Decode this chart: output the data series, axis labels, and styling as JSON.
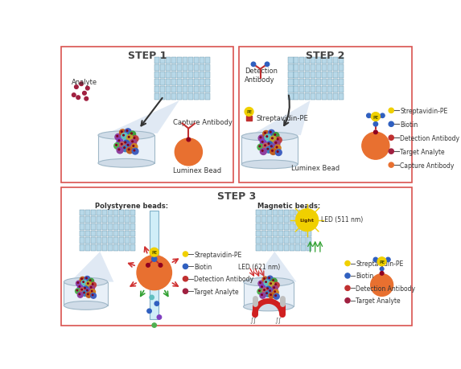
{
  "background_color": "#ffffff",
  "border_color": "#d9534f",
  "step1_label": "STEP 1",
  "step2_label": "STEP 2",
  "step3_label": "STEP 3",
  "font_step_size": 9,
  "font_label_size": 6,
  "font_sublabel_size": 5.5,
  "bead_colors": [
    "#9040a0",
    "#c06020",
    "#4060c0",
    "#40a040",
    "#c04040",
    "#8040c0",
    "#60c0c0",
    "#c0a030",
    "#a04080",
    "#3060c0",
    "#50b050",
    "#c06060",
    "#7050b0",
    "#d08020",
    "#4080c0"
  ],
  "legend_colors_s2": [
    "#f0d000",
    "#3060c0",
    "#c03030",
    "#a02040",
    "#e87030"
  ],
  "ps_legend_colors": [
    "#f0d000",
    "#3060c0",
    "#c03030",
    "#a02040"
  ],
  "mag_legend_colors": [
    "#f0d000",
    "#3060c0",
    "#c03030",
    "#a02040"
  ]
}
